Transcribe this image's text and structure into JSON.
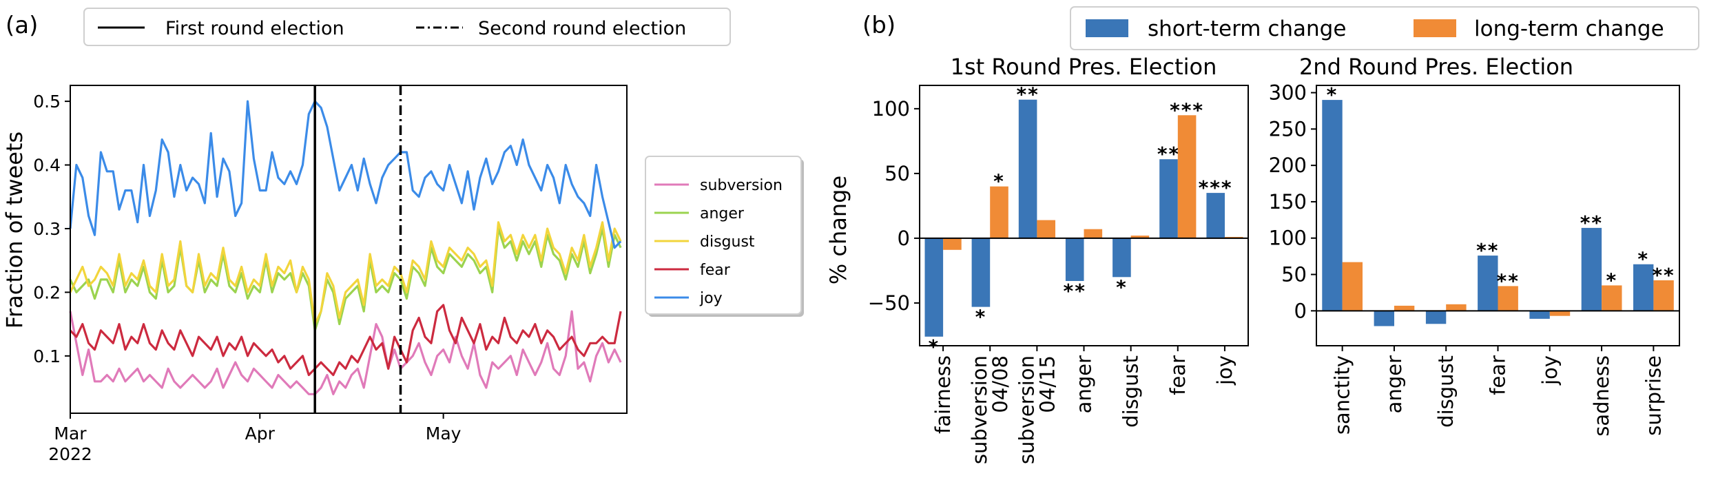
{
  "panel_labels": {
    "a": "(a)",
    "b": "(b)"
  },
  "legend_a": {
    "solid": "First round election",
    "dashdot": "Second round election"
  },
  "legend_b": {
    "short": "short-term change",
    "long": "long-term change"
  },
  "colors": {
    "subversion": "#e07ab9",
    "anger": "#9bd34f",
    "disgust": "#f2d53c",
    "fear": "#cc2a3f",
    "joy": "#3b8be8",
    "short": "#3a76b7",
    "long": "#f08b36"
  },
  "chart_data": [
    {
      "type": "line",
      "panel": "(a)",
      "ylabel": "Fraction of tweets",
      "xlabel": "",
      "ylim": [
        0.01,
        0.525
      ],
      "yticks": [
        "0.1",
        "0.2",
        "0.3",
        "0.4",
        "0.5"
      ],
      "ytick_values": [
        0.1,
        0.2,
        0.3,
        0.4,
        0.5
      ],
      "xticks": [
        {
          "day": 0,
          "label": "Mar",
          "sub": "2022"
        },
        {
          "day": 31,
          "label": "Apr",
          "sub": ""
        },
        {
          "day": 61,
          "label": "May",
          "sub": ""
        }
      ],
      "xlim": [
        0,
        91
      ],
      "events": [
        {
          "day": 40,
          "style": "solid",
          "label": "First round election"
        },
        {
          "day": 54,
          "style": "dashdot",
          "label": "Second round election"
        }
      ],
      "series": [
        {
          "name": "subversion",
          "values": [
            0.17,
            0.12,
            0.07,
            0.11,
            0.06,
            0.06,
            0.07,
            0.06,
            0.08,
            0.06,
            0.07,
            0.08,
            0.06,
            0.07,
            0.06,
            0.05,
            0.08,
            0.06,
            0.05,
            0.06,
            0.07,
            0.06,
            0.05,
            0.06,
            0.08,
            0.05,
            0.07,
            0.09,
            0.07,
            0.06,
            0.08,
            0.07,
            0.06,
            0.05,
            0.07,
            0.06,
            0.05,
            0.06,
            0.05,
            0.04,
            0.04,
            0.05,
            0.07,
            0.04,
            0.06,
            0.05,
            0.07,
            0.08,
            0.05,
            0.1,
            0.15,
            0.13,
            0.08,
            0.11,
            0.08,
            0.09,
            0.1,
            0.12,
            0.09,
            0.07,
            0.1,
            0.11,
            0.09,
            0.13,
            0.1,
            0.08,
            0.12,
            0.07,
            0.05,
            0.09,
            0.08,
            0.09,
            0.1,
            0.07,
            0.11,
            0.09,
            0.07,
            0.09,
            0.12,
            0.08,
            0.07,
            0.1,
            0.17,
            0.08,
            0.09,
            0.06,
            0.1,
            0.12,
            0.09,
            0.11,
            0.09
          ]
        },
        {
          "name": "anger",
          "values": [
            0.22,
            0.2,
            0.21,
            0.22,
            0.19,
            0.22,
            0.22,
            0.2,
            0.25,
            0.2,
            0.22,
            0.21,
            0.24,
            0.2,
            0.19,
            0.25,
            0.2,
            0.21,
            0.27,
            0.21,
            0.2,
            0.25,
            0.2,
            0.22,
            0.21,
            0.26,
            0.21,
            0.2,
            0.23,
            0.19,
            0.21,
            0.2,
            0.25,
            0.2,
            0.23,
            0.22,
            0.23,
            0.2,
            0.23,
            0.21,
            0.14,
            0.17,
            0.22,
            0.2,
            0.15,
            0.19,
            0.2,
            0.21,
            0.17,
            0.25,
            0.2,
            0.21,
            0.2,
            0.23,
            0.22,
            0.19,
            0.24,
            0.23,
            0.21,
            0.27,
            0.24,
            0.23,
            0.26,
            0.25,
            0.24,
            0.26,
            0.25,
            0.23,
            0.24,
            0.2,
            0.3,
            0.27,
            0.28,
            0.25,
            0.28,
            0.26,
            0.28,
            0.24,
            0.29,
            0.26,
            0.25,
            0.22,
            0.26,
            0.24,
            0.28,
            0.23,
            0.26,
            0.3,
            0.24,
            0.29,
            0.27
          ]
        },
        {
          "name": "disgust",
          "values": [
            0.2,
            0.22,
            0.24,
            0.21,
            0.22,
            0.24,
            0.23,
            0.21,
            0.26,
            0.21,
            0.23,
            0.22,
            0.25,
            0.21,
            0.2,
            0.26,
            0.21,
            0.22,
            0.28,
            0.21,
            0.2,
            0.26,
            0.21,
            0.23,
            0.22,
            0.27,
            0.22,
            0.21,
            0.24,
            0.2,
            0.22,
            0.21,
            0.26,
            0.21,
            0.24,
            0.23,
            0.25,
            0.2,
            0.24,
            0.22,
            0.15,
            0.17,
            0.23,
            0.21,
            0.16,
            0.2,
            0.21,
            0.22,
            0.18,
            0.26,
            0.21,
            0.22,
            0.21,
            0.24,
            0.23,
            0.2,
            0.25,
            0.24,
            0.22,
            0.28,
            0.25,
            0.24,
            0.27,
            0.26,
            0.25,
            0.27,
            0.26,
            0.24,
            0.25,
            0.21,
            0.31,
            0.28,
            0.29,
            0.26,
            0.29,
            0.27,
            0.29,
            0.25,
            0.3,
            0.27,
            0.26,
            0.23,
            0.27,
            0.25,
            0.29,
            0.24,
            0.27,
            0.31,
            0.25,
            0.3,
            0.28
          ]
        },
        {
          "name": "fear",
          "values": [
            0.14,
            0.13,
            0.15,
            0.12,
            0.11,
            0.14,
            0.13,
            0.12,
            0.15,
            0.11,
            0.13,
            0.12,
            0.15,
            0.12,
            0.11,
            0.14,
            0.12,
            0.11,
            0.14,
            0.12,
            0.1,
            0.13,
            0.12,
            0.11,
            0.13,
            0.1,
            0.12,
            0.11,
            0.13,
            0.1,
            0.12,
            0.11,
            0.1,
            0.11,
            0.09,
            0.1,
            0.08,
            0.09,
            0.1,
            0.07,
            0.08,
            0.09,
            0.08,
            0.07,
            0.09,
            0.08,
            0.1,
            0.09,
            0.11,
            0.13,
            0.11,
            0.12,
            0.08,
            0.13,
            0.11,
            0.09,
            0.14,
            0.16,
            0.13,
            0.12,
            0.17,
            0.18,
            0.14,
            0.12,
            0.16,
            0.14,
            0.12,
            0.15,
            0.11,
            0.13,
            0.12,
            0.16,
            0.13,
            0.12,
            0.14,
            0.13,
            0.15,
            0.12,
            0.14,
            0.13,
            0.11,
            0.12,
            0.13,
            0.11,
            0.1,
            0.12,
            0.12,
            0.13,
            0.12,
            0.12,
            0.17
          ]
        },
        {
          "name": "joy",
          "values": [
            0.3,
            0.4,
            0.38,
            0.32,
            0.29,
            0.42,
            0.39,
            0.39,
            0.33,
            0.36,
            0.36,
            0.31,
            0.4,
            0.32,
            0.36,
            0.44,
            0.42,
            0.35,
            0.4,
            0.36,
            0.38,
            0.37,
            0.34,
            0.45,
            0.35,
            0.41,
            0.39,
            0.32,
            0.34,
            0.5,
            0.41,
            0.36,
            0.36,
            0.42,
            0.38,
            0.37,
            0.39,
            0.37,
            0.4,
            0.48,
            0.5,
            0.49,
            0.46,
            0.41,
            0.36,
            0.38,
            0.4,
            0.36,
            0.41,
            0.37,
            0.34,
            0.38,
            0.4,
            0.41,
            0.42,
            0.42,
            0.36,
            0.35,
            0.38,
            0.39,
            0.37,
            0.36,
            0.4,
            0.37,
            0.34,
            0.39,
            0.33,
            0.38,
            0.41,
            0.37,
            0.39,
            0.42,
            0.43,
            0.4,
            0.44,
            0.4,
            0.38,
            0.36,
            0.4,
            0.38,
            0.34,
            0.4,
            0.37,
            0.35,
            0.34,
            0.32,
            0.4,
            0.35,
            0.31,
            0.27,
            0.28
          ]
        }
      ]
    },
    {
      "type": "bar",
      "panel": "(b)",
      "title": "1st Round Pres. Election",
      "ylabel": "% change",
      "ylim": [
        -83,
        118
      ],
      "yticks": [
        "−50",
        "0",
        "50",
        "100"
      ],
      "ytick_values": [
        -50,
        0,
        50,
        100
      ],
      "categories": [
        "fairness",
        "subversion\n04/08",
        "subversion\n04/15",
        "anger",
        "disgust",
        "fear",
        "joy"
      ],
      "series": [
        {
          "name": "short-term change",
          "values": [
            -76,
            -53,
            107,
            -33,
            -30,
            61,
            35
          ],
          "sig": [
            "*",
            "*",
            "**",
            "**",
            "*",
            "**",
            "***"
          ]
        },
        {
          "name": "long-term change",
          "values": [
            -9,
            40,
            14,
            7,
            2,
            95,
            1
          ],
          "sig": [
            "",
            "*",
            "",
            "",
            "",
            "***",
            ""
          ]
        }
      ]
    },
    {
      "type": "bar",
      "panel": "(b)",
      "title": "2nd Round Pres. Election",
      "ylabel": "",
      "ylim": [
        -48,
        310
      ],
      "yticks": [
        "0",
        "50",
        "100",
        "150",
        "200",
        "250",
        "300"
      ],
      "ytick_values": [
        0,
        50,
        100,
        150,
        200,
        250,
        300
      ],
      "categories": [
        "sanctity",
        "anger",
        "disgust",
        "fear",
        "joy",
        "sadness",
        "surprise"
      ],
      "series": [
        {
          "name": "short-term change",
          "values": [
            290,
            -21,
            -18,
            76,
            -11,
            114,
            64
          ],
          "sig": [
            "*",
            "",
            "",
            "**",
            "",
            "**",
            "*"
          ]
        },
        {
          "name": "long-term change",
          "values": [
            67,
            7,
            9,
            34,
            -7,
            35,
            42
          ],
          "sig": [
            "",
            "",
            "",
            "**",
            "",
            "*",
            "**"
          ]
        }
      ]
    }
  ]
}
